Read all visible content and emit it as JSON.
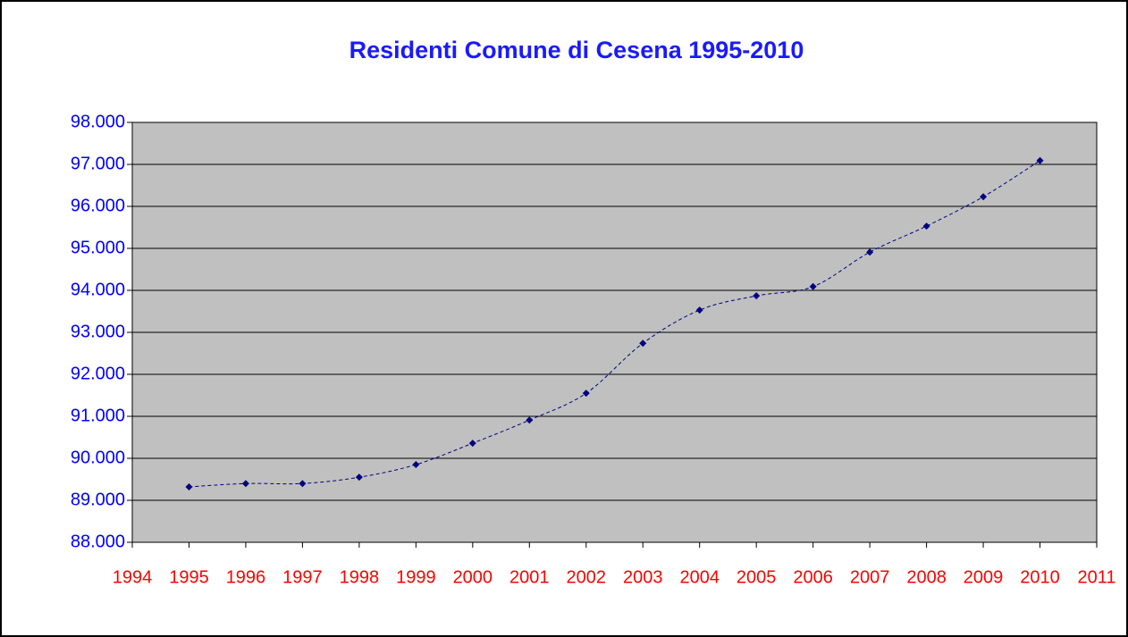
{
  "chart_data": {
    "type": "line",
    "title": "Residenti Comune di Cesena 1995-2010",
    "x": [
      1995,
      1996,
      1997,
      1998,
      1999,
      2000,
      2001,
      2002,
      2003,
      2004,
      2005,
      2006,
      2007,
      2008,
      2009,
      2010
    ],
    "values": [
      89320,
      89400,
      89400,
      89550,
      89850,
      90360,
      90910,
      91550,
      92740,
      93530,
      93870,
      94090,
      94910,
      95530,
      96230,
      97090
    ],
    "color": "#000080",
    "line_style": "dashed",
    "smooth": true,
    "xlim": [
      1994,
      2011
    ],
    "xticks": [
      1994,
      1995,
      1996,
      1997,
      1998,
      1999,
      2000,
      2001,
      2002,
      2003,
      2004,
      2005,
      2006,
      2007,
      2008,
      2009,
      2010,
      2011
    ],
    "ylim": [
      88000,
      98000
    ],
    "yticks": [
      {
        "value": 88000,
        "label": "88.000"
      },
      {
        "value": 89000,
        "label": "89.000"
      },
      {
        "value": 90000,
        "label": "90.000"
      },
      {
        "value": 91000,
        "label": "91.000"
      },
      {
        "value": 92000,
        "label": "92.000"
      },
      {
        "value": 93000,
        "label": "93.000"
      },
      {
        "value": 94000,
        "label": "94.000"
      },
      {
        "value": 95000,
        "label": "95.000"
      },
      {
        "value": 96000,
        "label": "96.000"
      },
      {
        "value": 97000,
        "label": "97.000"
      },
      {
        "value": 98000,
        "label": "98.000"
      }
    ],
    "grid": true
  }
}
